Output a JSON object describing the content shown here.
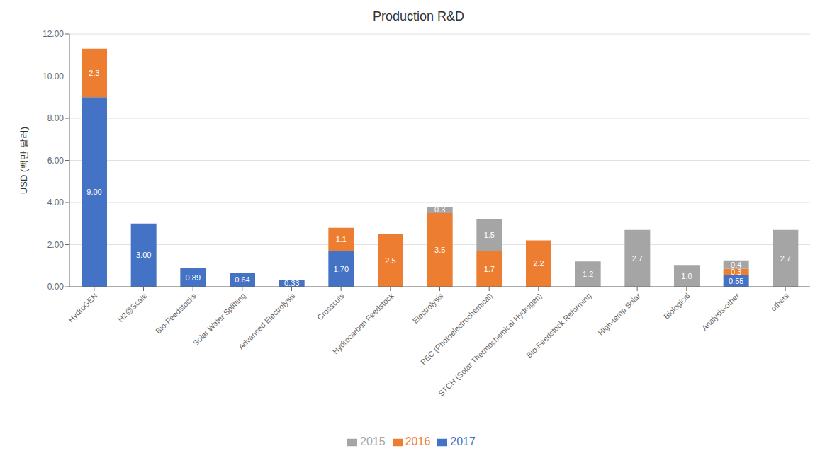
{
  "chart_data": {
    "type": "bar",
    "title": "Production R&D",
    "ylabel": "USD (백만 달러)",
    "categories": [
      "HydroGEN",
      "H2@Scale",
      "Bio-Feedstocks",
      "Solar Water Splitting",
      "Advanced Electrolysis",
      "Crosscuts",
      "Hydrocarbon Feedstock",
      "Electrolysis",
      "PEC (Photoelectrochemical)",
      "STCH (Solar Thermochemical Hydrogen)",
      "Bio-Feedstock Reforming",
      "High-temp Solar",
      "Biological",
      "Analysis-other",
      "others"
    ],
    "series": [
      {
        "name": "2017",
        "color": "#4472C4",
        "values": [
          9.0,
          3.0,
          0.89,
          0.64,
          0.33,
          1.7,
          0.0,
          0.0,
          0.0,
          0.0,
          0.0,
          0.0,
          0.0,
          0.55,
          0.0
        ],
        "value_labels": [
          "9.00",
          "3.00",
          "0.89",
          "0.64",
          "0.33",
          "1.70",
          null,
          null,
          null,
          null,
          null,
          null,
          null,
          "0.55",
          null
        ]
      },
      {
        "name": "2016",
        "color": "#ED7D31",
        "values": [
          2.3,
          0.0,
          0.0,
          0.0,
          0.0,
          1.1,
          2.5,
          3.5,
          1.7,
          2.2,
          0.0,
          0.0,
          0.0,
          0.3,
          0.0
        ],
        "value_labels": [
          "2.3",
          null,
          null,
          null,
          null,
          "1.1",
          "2.5",
          "3.5",
          "1.7",
          "2.2",
          null,
          null,
          null,
          "0.3",
          null
        ]
      },
      {
        "name": "2015",
        "color": "#A5A5A5",
        "values": [
          0.0,
          0.0,
          0.0,
          0.0,
          0.0,
          0.0,
          0.0,
          0.3,
          1.5,
          0.0,
          1.2,
          2.7,
          1.0,
          0.4,
          2.7
        ],
        "value_labels": [
          null,
          null,
          null,
          null,
          null,
          null,
          null,
          "0.3",
          "1.5",
          null,
          "1.2",
          "2.7",
          "1.0",
          "0.4",
          "2.7"
        ]
      }
    ],
    "stacked": true,
    "data_labels": true,
    "grid": true,
    "legend": "bottom",
    "ylim": [
      0,
      12.0
    ],
    "yticks": [
      {
        "value": 0,
        "label": "0.00"
      },
      {
        "value": 2,
        "label": "2.00"
      },
      {
        "value": 4,
        "label": "4.00"
      },
      {
        "value": 6,
        "label": "6.00"
      },
      {
        "value": 8,
        "label": "8.00"
      },
      {
        "value": 10,
        "label": "10.00"
      },
      {
        "value": 12,
        "label": "12.00"
      }
    ]
  }
}
